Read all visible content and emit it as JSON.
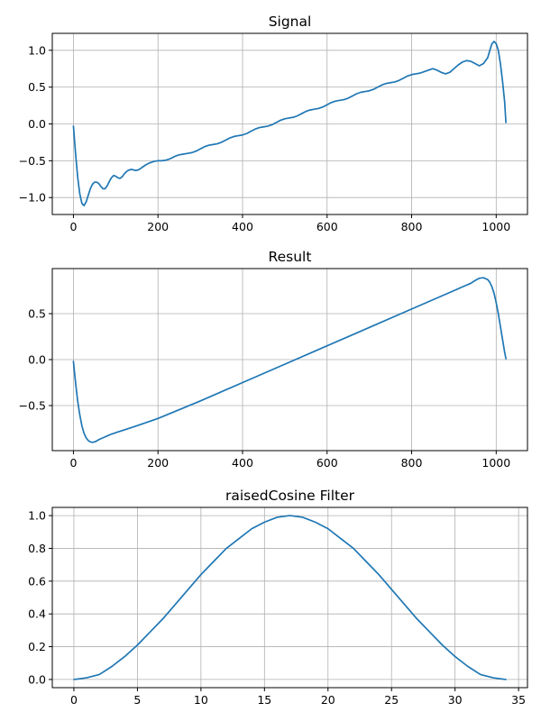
{
  "colors": {
    "line": "#1f77b4",
    "grid": "#b0b0b0",
    "axes": "#000000"
  },
  "chart_data": [
    {
      "type": "line",
      "title": "Signal",
      "xlabel": "",
      "ylabel": "",
      "grid": true,
      "xlim": [
        -50,
        1074
      ],
      "ylim": [
        -1.23,
        1.23
      ],
      "xticks": [
        0,
        200,
        400,
        600,
        800,
        1000
      ],
      "xtick_labels": [
        "0",
        "200",
        "400",
        "600",
        "800",
        "1000"
      ],
      "yticks": [
        -1.0,
        -0.5,
        0.0,
        0.5,
        1.0
      ],
      "ytick_labels": [
        "−1.0",
        "−0.5",
        "0.0",
        "0.5",
        "1.0"
      ],
      "series": [
        {
          "x": [
            0,
            5,
            10,
            15,
            20,
            25,
            30,
            35,
            40,
            45,
            50,
            55,
            60,
            65,
            70,
            75,
            80,
            85,
            90,
            95,
            100,
            105,
            110,
            115,
            120,
            125,
            130,
            135,
            140,
            145,
            150,
            155,
            160,
            170,
            180,
            190,
            200,
            210,
            220,
            230,
            240,
            250,
            260,
            270,
            280,
            290,
            300,
            310,
            320,
            330,
            340,
            350,
            360,
            370,
            380,
            390,
            400,
            410,
            420,
            430,
            440,
            450,
            460,
            470,
            480,
            490,
            500,
            510,
            520,
            530,
            540,
            550,
            560,
            570,
            580,
            590,
            600,
            610,
            620,
            630,
            640,
            650,
            660,
            670,
            680,
            690,
            700,
            710,
            720,
            730,
            740,
            750,
            760,
            770,
            780,
            790,
            800,
            810,
            820,
            830,
            840,
            850,
            860,
            870,
            880,
            890,
            900,
            910,
            920,
            930,
            940,
            950,
            960,
            970,
            980,
            985,
            990,
            995,
            1000,
            1005,
            1010,
            1015,
            1020,
            1023
          ],
          "y": [
            -0.03,
            -0.4,
            -0.72,
            -0.95,
            -1.08,
            -1.11,
            -1.06,
            -0.97,
            -0.88,
            -0.82,
            -0.79,
            -0.79,
            -0.81,
            -0.85,
            -0.88,
            -0.88,
            -0.84,
            -0.78,
            -0.73,
            -0.7,
            -0.71,
            -0.73,
            -0.74,
            -0.72,
            -0.68,
            -0.65,
            -0.63,
            -0.62,
            -0.62,
            -0.63,
            -0.63,
            -0.62,
            -0.6,
            -0.56,
            -0.53,
            -0.51,
            -0.5,
            -0.5,
            -0.49,
            -0.47,
            -0.44,
            -0.42,
            -0.41,
            -0.4,
            -0.39,
            -0.37,
            -0.34,
            -0.31,
            -0.29,
            -0.28,
            -0.27,
            -0.25,
            -0.22,
            -0.19,
            -0.17,
            -0.16,
            -0.15,
            -0.13,
            -0.1,
            -0.07,
            -0.05,
            -0.04,
            -0.03,
            -0.01,
            0.02,
            0.05,
            0.07,
            0.08,
            0.09,
            0.11,
            0.14,
            0.17,
            0.19,
            0.2,
            0.21,
            0.23,
            0.26,
            0.29,
            0.31,
            0.32,
            0.33,
            0.35,
            0.38,
            0.41,
            0.43,
            0.44,
            0.45,
            0.47,
            0.5,
            0.53,
            0.55,
            0.56,
            0.57,
            0.59,
            0.62,
            0.65,
            0.67,
            0.68,
            0.69,
            0.71,
            0.73,
            0.75,
            0.73,
            0.7,
            0.68,
            0.7,
            0.75,
            0.8,
            0.84,
            0.86,
            0.85,
            0.82,
            0.79,
            0.82,
            0.9,
            1.0,
            1.09,
            1.12,
            1.09,
            1.0,
            0.82,
            0.58,
            0.3,
            0.02
          ]
        }
      ]
    },
    {
      "type": "line",
      "title": "Result",
      "xlabel": "",
      "ylabel": "",
      "grid": true,
      "xlim": [
        -50,
        1074
      ],
      "ylim": [
        -0.99,
        0.99
      ],
      "xticks": [
        0,
        200,
        400,
        600,
        800,
        1000
      ],
      "xtick_labels": [
        "0",
        "200",
        "400",
        "600",
        "800",
        "1000"
      ],
      "yticks": [
        -0.5,
        0.0,
        0.5
      ],
      "ytick_labels": [
        "−0.5",
        "0.0",
        "0.5"
      ],
      "series": [
        {
          "x": [
            0,
            5,
            10,
            15,
            20,
            25,
            30,
            35,
            40,
            45,
            50,
            55,
            60,
            70,
            80,
            90,
            100,
            120,
            150,
            200,
            300,
            400,
            500,
            600,
            700,
            800,
            900,
            920,
            940,
            950,
            960,
            970,
            980,
            985,
            990,
            995,
            1000,
            1005,
            1010,
            1015,
            1020,
            1023
          ],
          "y": [
            -0.02,
            -0.25,
            -0.45,
            -0.6,
            -0.72,
            -0.8,
            -0.85,
            -0.88,
            -0.895,
            -0.9,
            -0.895,
            -0.885,
            -0.87,
            -0.85,
            -0.83,
            -0.81,
            -0.795,
            -0.765,
            -0.72,
            -0.64,
            -0.45,
            -0.25,
            -0.05,
            0.15,
            0.35,
            0.55,
            0.75,
            0.79,
            0.83,
            0.86,
            0.885,
            0.89,
            0.87,
            0.84,
            0.79,
            0.72,
            0.62,
            0.5,
            0.36,
            0.22,
            0.08,
            0.01
          ]
        }
      ]
    },
    {
      "type": "line",
      "title": "raisedCosine Filter",
      "xlabel": "",
      "ylabel": "",
      "grid": true,
      "xlim": [
        -1.7,
        35.7
      ],
      "ylim": [
        -0.05,
        1.05
      ],
      "xticks": [
        0,
        5,
        10,
        15,
        20,
        25,
        30,
        35
      ],
      "xtick_labels": [
        "0",
        "5",
        "10",
        "15",
        "20",
        "25",
        "30",
        "35"
      ],
      "yticks": [
        0.0,
        0.2,
        0.4,
        0.6,
        0.8,
        1.0
      ],
      "ytick_labels": [
        "0.0",
        "0.2",
        "0.4",
        "0.6",
        "0.8",
        "1.0"
      ],
      "series": [
        {
          "x": [
            0,
            1,
            2,
            3,
            4,
            5,
            6,
            7,
            8,
            9,
            10,
            11,
            12,
            13,
            14,
            15,
            16,
            17,
            18,
            19,
            20,
            21,
            22,
            23,
            24,
            25,
            26,
            27,
            28,
            29,
            30,
            31,
            32,
            33,
            34
          ],
          "y": [
            0.0,
            0.01,
            0.03,
            0.08,
            0.14,
            0.21,
            0.29,
            0.37,
            0.46,
            0.55,
            0.64,
            0.72,
            0.8,
            0.86,
            0.92,
            0.96,
            0.99,
            1.0,
            0.99,
            0.96,
            0.92,
            0.86,
            0.8,
            0.72,
            0.64,
            0.55,
            0.46,
            0.37,
            0.29,
            0.21,
            0.14,
            0.08,
            0.03,
            0.01,
            0.0
          ]
        }
      ]
    }
  ]
}
